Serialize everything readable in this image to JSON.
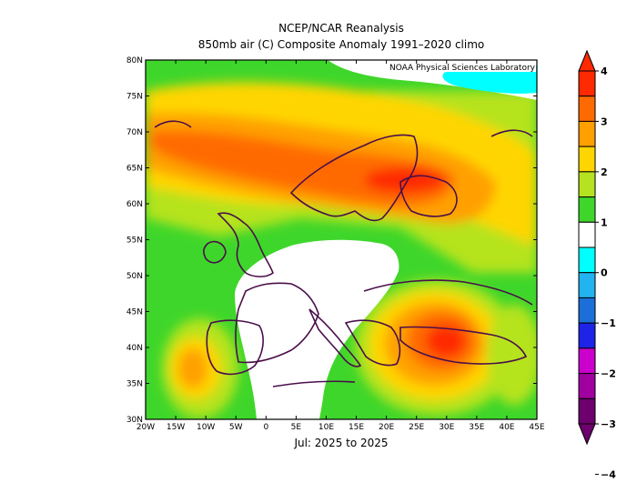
{
  "title_line1": "NCEP/NCAR Reanalysis",
  "title_line2": "850mb air (C) Composite Anomaly 1991–2020 climo",
  "time_caption": "Jul: 2025 to 2025",
  "credit": "NOAA Physical Sciences Laboratory",
  "map": {
    "lon_range": [
      -20,
      45
    ],
    "lat_range": [
      30,
      80
    ],
    "x_tick_labels": [
      "20W",
      "15W",
      "10W",
      "5W",
      "0",
      "5E",
      "10E",
      "15E",
      "20E",
      "25E",
      "30E",
      "35E",
      "40E",
      "45E"
    ],
    "y_tick_labels": [
      "80N",
      "75N",
      "70N",
      "65N",
      "60N",
      "55N",
      "50N",
      "45N",
      "40N",
      "35N",
      "30N"
    ]
  },
  "colorbar": {
    "labels": [
      "4",
      "3",
      "2",
      "1",
      "0",
      "−1",
      "−2",
      "−3",
      "−4"
    ],
    "colors": [
      "#ff2a00",
      "#ff6a00",
      "#ffa000",
      "#ffd500",
      "#b5e31f",
      "#3fd62b",
      "#ffffff",
      "#00ffff",
      "#22b4f0",
      "#1c6ed9",
      "#1d24e6",
      "#cc00cc",
      "#a000a0",
      "#6e006e"
    ]
  }
}
